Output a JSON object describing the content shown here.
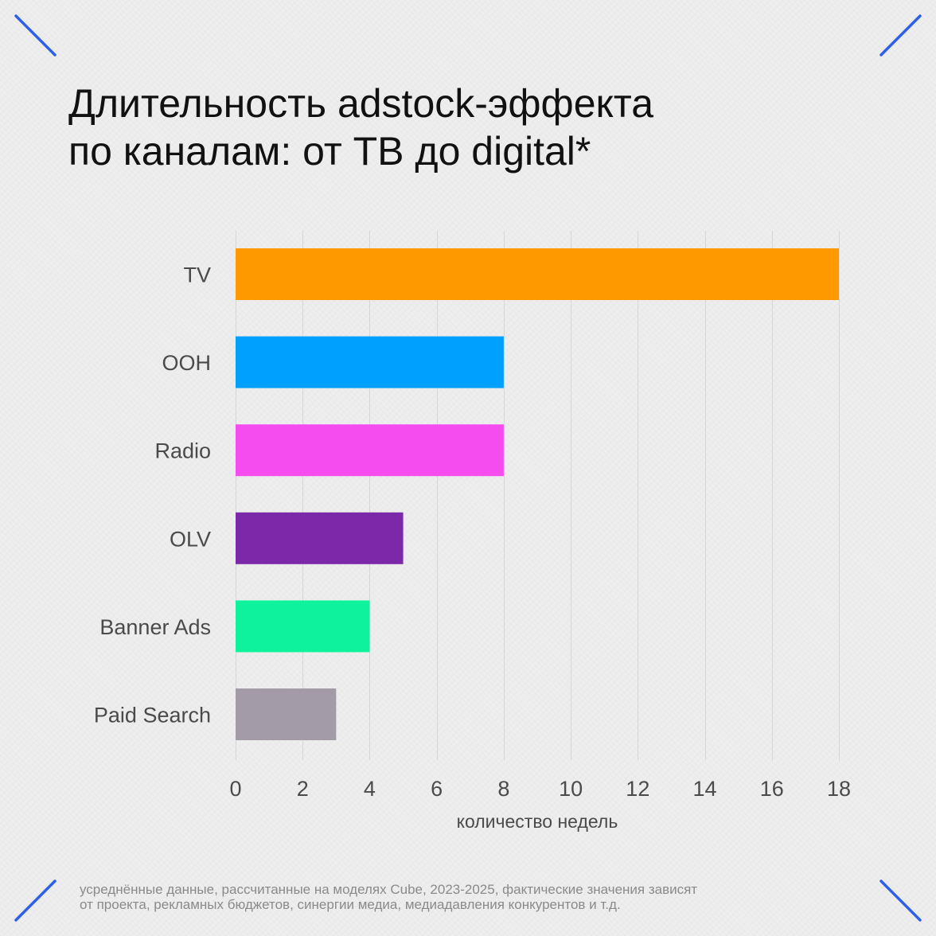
{
  "title": {
    "line1": "Длительность adstock-эффекта",
    "line2": "по каналам: от ТВ до digital*"
  },
  "footnote": {
    "line1": "усреднённые данные, рассчитанные на моделях Cube, 2023-2025, фактические значения зависят",
    "line2": "от проекта, рекламных бюджетов, синергии медиа, медиадавления конкурентов и т.д."
  },
  "colors": {
    "accent": "#2f5fe6"
  },
  "chart_data": {
    "type": "bar",
    "orientation": "horizontal",
    "categories": [
      "TV",
      "OOH",
      "Radio",
      "OLV",
      "Banner Ads",
      "Paid Search"
    ],
    "values": [
      18,
      8,
      8,
      5,
      4,
      3
    ],
    "colors": [
      "#ff9900",
      "#00a0ff",
      "#f54cf0",
      "#7b29a8",
      "#0ef29d",
      "#a39ca6"
    ],
    "xlabel": "количество недель",
    "ylabel": "",
    "xlim": [
      0,
      18
    ],
    "xticks": [
      0,
      2,
      4,
      6,
      8,
      10,
      12,
      14,
      16,
      18
    ],
    "grid": true
  }
}
